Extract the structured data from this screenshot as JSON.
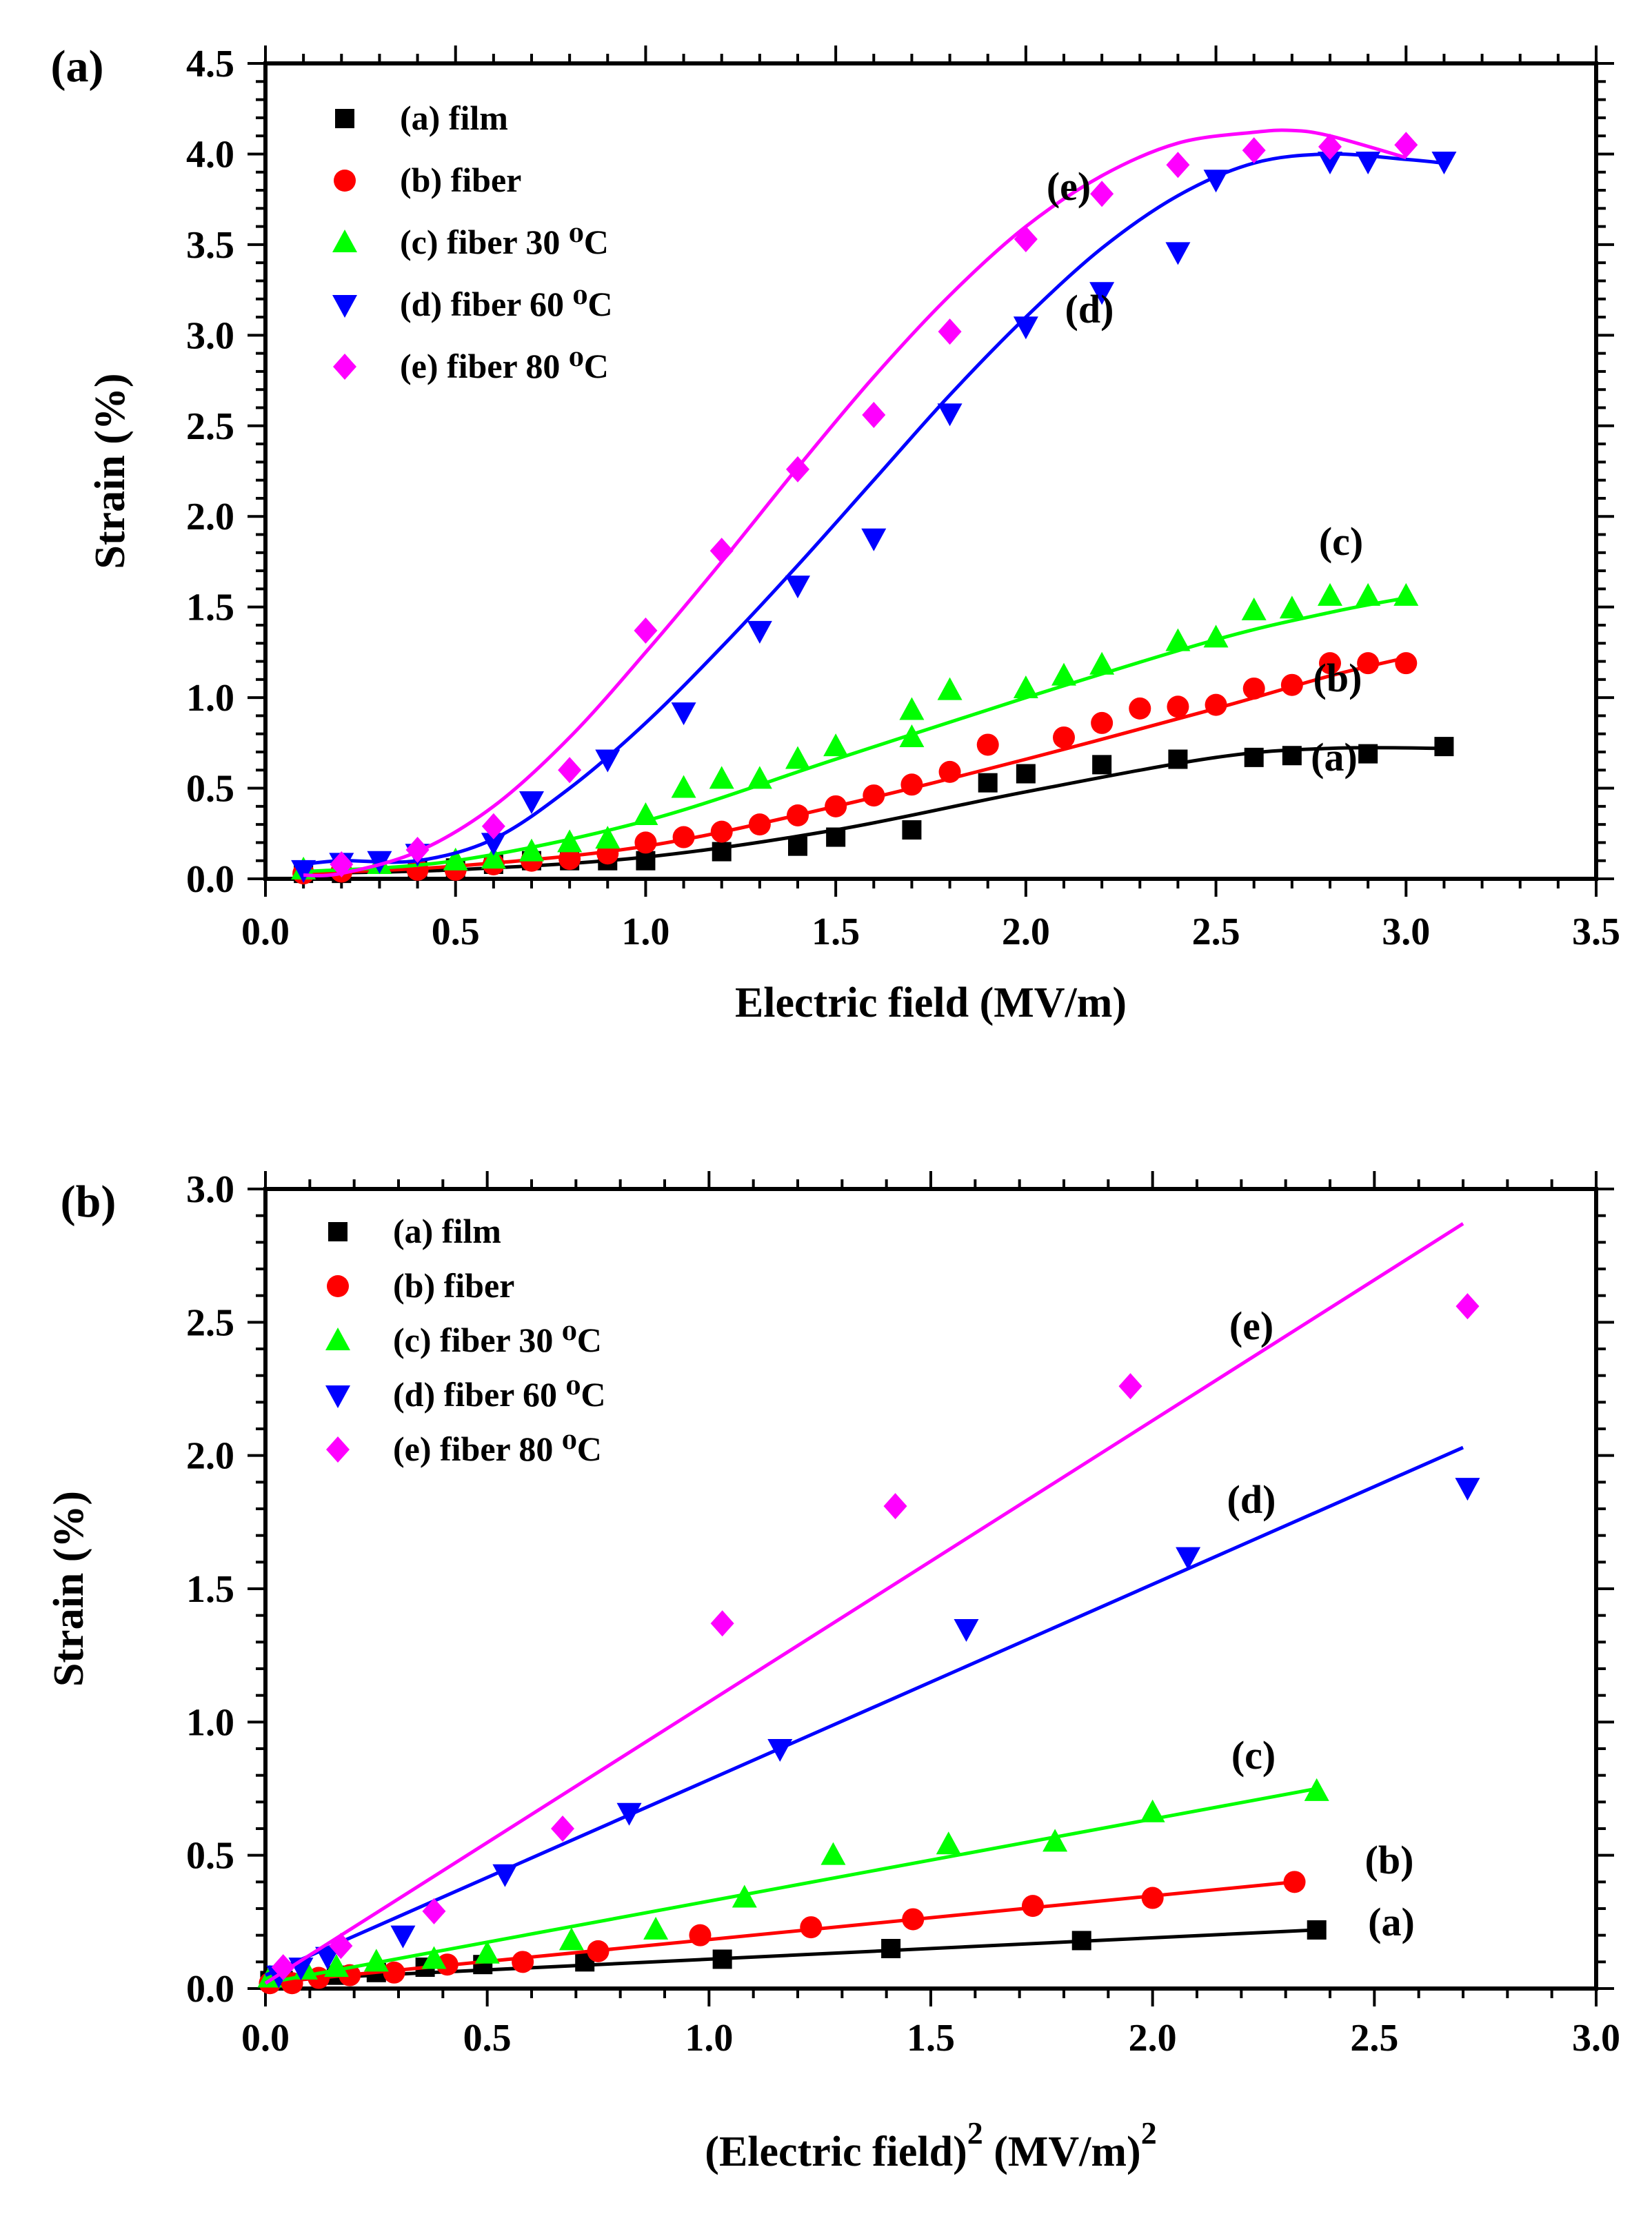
{
  "chart_data": [
    {
      "type": "scatter",
      "panel_label": "(a)",
      "xlabel": "Electric field (MV/m)",
      "ylabel": "Strain (%)",
      "xlim": [
        0.0,
        3.5
      ],
      "ylim": [
        0.0,
        4.5
      ],
      "xticks": [
        "0.0",
        "0.5",
        "1.0",
        "1.5",
        "2.0",
        "2.5",
        "3.0",
        "3.5"
      ],
      "yticks": [
        "0.0",
        "0.5",
        "1.0",
        "1.5",
        "2.0",
        "2.5",
        "3.0",
        "3.5",
        "4.0",
        "4.5"
      ],
      "legend_position": "top-left",
      "series": [
        {
          "name": "(a) film",
          "curve_label": "(a)",
          "marker": "square",
          "color": "#000000",
          "x": [
            0.1,
            0.2,
            0.4,
            0.5,
            0.6,
            0.7,
            0.8,
            0.9,
            1.0,
            1.2,
            1.4,
            1.5,
            1.7,
            1.9,
            2.0,
            2.2,
            2.4,
            2.6,
            2.7,
            2.9,
            3.1
          ],
          "y": [
            0.03,
            0.03,
            0.05,
            0.06,
            0.08,
            0.1,
            0.1,
            0.1,
            0.1,
            0.15,
            0.18,
            0.23,
            0.27,
            0.53,
            0.58,
            0.63,
            0.66,
            0.67,
            0.68,
            0.69,
            0.73
          ],
          "fit_x": [
            0.1,
            0.5,
            1.0,
            1.5,
            2.0,
            2.5,
            2.8,
            3.1
          ],
          "fit_y": [
            0.03,
            0.05,
            0.12,
            0.27,
            0.48,
            0.67,
            0.72,
            0.72
          ]
        },
        {
          "name": "(b) fiber",
          "curve_label": "(b)",
          "marker": "circle",
          "color": "#ff0000",
          "x": [
            0.1,
            0.2,
            0.4,
            0.5,
            0.6,
            0.7,
            0.8,
            0.9,
            1.0,
            1.1,
            1.2,
            1.3,
            1.4,
            1.5,
            1.6,
            1.7,
            1.8,
            1.9,
            2.1,
            2.2,
            2.3,
            2.4,
            2.5,
            2.6,
            2.7,
            2.8,
            2.9,
            3.0
          ],
          "y": [
            0.03,
            0.04,
            0.05,
            0.05,
            0.08,
            0.1,
            0.11,
            0.14,
            0.2,
            0.23,
            0.26,
            0.3,
            0.35,
            0.4,
            0.46,
            0.52,
            0.59,
            0.74,
            0.78,
            0.86,
            0.94,
            0.95,
            0.96,
            1.05,
            1.07,
            1.19,
            1.19,
            1.19
          ],
          "fit_x": [
            0.1,
            0.5,
            1.0,
            1.5,
            2.0,
            2.5,
            2.8,
            3.0
          ],
          "fit_y": [
            0.03,
            0.07,
            0.18,
            0.4,
            0.66,
            0.94,
            1.12,
            1.22
          ]
        },
        {
          "name": "(c) fiber 30 ⁰C",
          "curve_label": "(c)",
          "marker": "triangle-up",
          "color": "#00ff00",
          "x": [
            0.1,
            0.3,
            0.5,
            0.6,
            0.7,
            0.8,
            0.9,
            1.0,
            1.1,
            1.2,
            1.3,
            1.4,
            1.5,
            1.7,
            1.7,
            1.8,
            2.0,
            2.1,
            2.2,
            2.4,
            2.5,
            2.6,
            2.7,
            2.8,
            2.9,
            3.0
          ],
          "y": [
            0.05,
            0.08,
            0.1,
            0.11,
            0.15,
            0.2,
            0.22,
            0.35,
            0.5,
            0.55,
            0.55,
            0.66,
            0.73,
            0.78,
            0.93,
            1.04,
            1.05,
            1.12,
            1.18,
            1.31,
            1.33,
            1.48,
            1.49,
            1.56,
            1.56,
            1.56
          ],
          "fit_x": [
            0.1,
            0.5,
            1.0,
            1.5,
            2.0,
            2.5,
            2.8,
            3.0
          ],
          "fit_y": [
            0.04,
            0.1,
            0.32,
            0.66,
            1.0,
            1.32,
            1.47,
            1.55
          ]
        },
        {
          "name": "(d) fiber 60 ⁰C",
          "curve_label": "(d)",
          "marker": "triangle-down",
          "color": "#0000ff",
          "x": [
            0.1,
            0.2,
            0.3,
            0.4,
            0.6,
            0.7,
            0.9,
            1.1,
            1.3,
            1.4,
            1.6,
            1.8,
            2.0,
            2.2,
            2.4,
            2.5,
            2.8,
            2.9,
            3.1
          ],
          "y": [
            0.05,
            0.09,
            0.1,
            0.14,
            0.2,
            0.43,
            0.66,
            0.92,
            1.37,
            1.62,
            1.88,
            2.57,
            3.05,
            3.24,
            3.46,
            3.86,
            3.96,
            3.96,
            3.96
          ],
          "fit_x": [
            0.1,
            0.2,
            0.4,
            0.6,
            0.8,
            1.0,
            1.2,
            1.4,
            1.6,
            1.8,
            2.0,
            2.2,
            2.4,
            2.6,
            2.8,
            3.0,
            3.1
          ],
          "fit_y": [
            0.08,
            0.1,
            0.1,
            0.22,
            0.5,
            0.86,
            1.28,
            1.73,
            2.2,
            2.67,
            3.1,
            3.48,
            3.77,
            3.95,
            4.0,
            3.97,
            3.95
          ]
        },
        {
          "name": "(e) fiber 80 ⁰C",
          "curve_label": "(e)",
          "marker": "diamond",
          "color": "#ff00ff",
          "x": [
            0.2,
            0.4,
            0.6,
            0.8,
            1.0,
            1.2,
            1.4,
            1.6,
            1.8,
            2.0,
            2.2,
            2.4,
            2.6,
            2.8,
            3.0
          ],
          "y": [
            0.08,
            0.16,
            0.29,
            0.6,
            1.37,
            1.81,
            2.26,
            2.56,
            3.02,
            3.53,
            3.78,
            3.94,
            4.02,
            4.04,
            4.05
          ],
          "fit_x": [
            0.1,
            0.2,
            0.4,
            0.6,
            0.8,
            1.0,
            1.2,
            1.4,
            1.6,
            1.8,
            2.0,
            2.2,
            2.4,
            2.6,
            2.7,
            2.8,
            3.0
          ],
          "fit_y": [
            0.02,
            0.03,
            0.15,
            0.4,
            0.78,
            1.25,
            1.75,
            2.27,
            2.77,
            3.22,
            3.6,
            3.88,
            4.06,
            4.12,
            4.13,
            4.1,
            3.98
          ]
        }
      ]
    },
    {
      "type": "scatter",
      "panel_label": "(b)",
      "xlabel_main": "(Electric field)",
      "xlabel_sup1": "2",
      "xlabel_unit": "(MV/m)",
      "xlabel_sup2": "2",
      "ylabel": "Strain (%)",
      "xlim": [
        0.0,
        3.0
      ],
      "ylim": [
        0.0,
        3.0
      ],
      "xticks": [
        "0.0",
        "0.5",
        "1.0",
        "1.5",
        "2.0",
        "2.5",
        "3.0"
      ],
      "yticks": [
        "0.0",
        "0.5",
        "1.0",
        "1.5",
        "2.0",
        "2.5",
        "3.0"
      ],
      "legend_position": "top-left",
      "series": [
        {
          "name": "(a) film",
          "curve_label": "(a)",
          "marker": "square",
          "color": "#000000",
          "x": [
            0.01,
            0.04,
            0.16,
            0.25,
            0.36,
            0.49,
            0.72,
            1.03,
            1.41,
            1.84,
            2.37
          ],
          "y": [
            0.03,
            0.03,
            0.05,
            0.06,
            0.08,
            0.09,
            0.1,
            0.11,
            0.15,
            0.18,
            0.22
          ],
          "fit_x": [
            0.0,
            2.37
          ],
          "fit_y": [
            0.03,
            0.22
          ]
        },
        {
          "name": "(b) fiber",
          "curve_label": "(b)",
          "marker": "circle",
          "color": "#ff0000",
          "x": [
            0.01,
            0.06,
            0.12,
            0.19,
            0.29,
            0.41,
            0.58,
            0.75,
            0.98,
            1.23,
            1.46,
            1.73,
            2.0,
            2.32
          ],
          "y": [
            0.02,
            0.02,
            0.04,
            0.05,
            0.06,
            0.09,
            0.1,
            0.14,
            0.2,
            0.23,
            0.26,
            0.31,
            0.34,
            0.4
          ],
          "fit_x": [
            0.0,
            2.32
          ],
          "fit_y": [
            0.02,
            0.4
          ]
        },
        {
          "name": "(c) fiber 30 ⁰C",
          "curve_label": "(c)",
          "marker": "triangle-up",
          "color": "#00ff00",
          "x": [
            0.01,
            0.09,
            0.16,
            0.25,
            0.38,
            0.5,
            0.69,
            0.88,
            1.08,
            1.28,
            1.54,
            1.78,
            2.0,
            2.37
          ],
          "y": [
            0.04,
            0.07,
            0.08,
            0.1,
            0.11,
            0.13,
            0.18,
            0.22,
            0.34,
            0.5,
            0.54,
            0.55,
            0.66,
            0.74
          ],
          "fit_x": [
            0.0,
            2.37
          ],
          "fit_y": [
            0.02,
            0.75
          ]
        },
        {
          "name": "(d) fiber 60 ⁰C",
          "curve_label": "(d)",
          "marker": "triangle-down",
          "color": "#0000ff",
          "x": [
            0.03,
            0.08,
            0.14,
            0.31,
            0.54,
            0.82,
            1.16,
            1.58,
            2.08,
            2.71
          ],
          "y": [
            0.05,
            0.08,
            0.12,
            0.2,
            0.43,
            0.66,
            0.9,
            1.35,
            1.62,
            1.88
          ],
          "fit_x": [
            0.0,
            2.7
          ],
          "fit_y": [
            0.05,
            2.03
          ]
        },
        {
          "name": "(e) fiber 80 ⁰C",
          "curve_label": "(e)",
          "marker": "diamond",
          "color": "#ff00ff",
          "x": [
            0.04,
            0.17,
            0.38,
            0.67,
            1.03,
            1.42,
            1.95,
            2.71
          ],
          "y": [
            0.08,
            0.16,
            0.29,
            0.6,
            1.37,
            1.81,
            2.26,
            2.56
          ],
          "fit_x": [
            0.0,
            2.7
          ],
          "fit_y": [
            0.02,
            2.87
          ]
        }
      ]
    }
  ]
}
